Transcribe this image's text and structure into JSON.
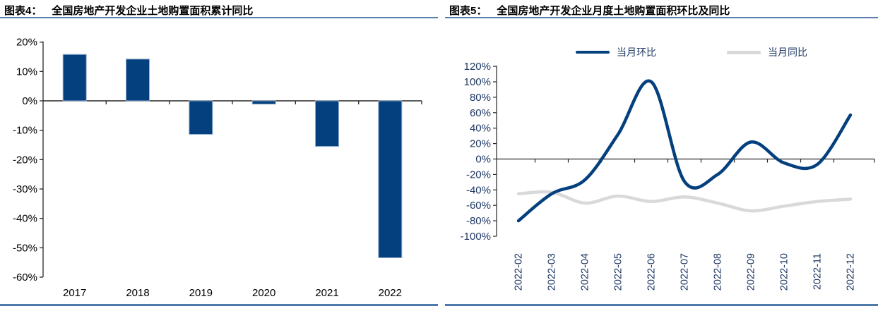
{
  "colors": {
    "navy_series": "#04407E",
    "gray_series": "#D9D9D9",
    "bar_border": "#93AECE",
    "axis_line": "#262626",
    "left_tick_label": "#000000",
    "right_tick_label": "#1F3864",
    "title_underline": "#5b7ca8",
    "bottom_rule": "#4d79ad"
  },
  "charts": {
    "left": {
      "figure_label": "图表4：",
      "title": "全国房地产开发企业土地购置面积累计同比"
    },
    "right": {
      "figure_label": "图表5：",
      "title": "全国房地产开发企业月度土地购置面积环比及同比"
    }
  },
  "chart_data": [
    {
      "id": "land-purchase-area-cumulative-yoy",
      "type": "bar",
      "title": "全国房地产开发企业土地购置面积累计同比",
      "categories": [
        "2017",
        "2018",
        "2019",
        "2020",
        "2021",
        "2022"
      ],
      "values": [
        15.8,
        14.2,
        -11.4,
        -1.1,
        -15.5,
        -53.4
      ],
      "unit": "%",
      "ylim": [
        -60,
        20
      ],
      "ytick_step": 10,
      "grid": false,
      "legend_position": "none"
    },
    {
      "id": "land-purchase-area-monthly-mom-yoy",
      "type": "line",
      "title": "全国房地产开发企业月度土地购置面积环比及同比",
      "categories": [
        "2022-02",
        "2022-03",
        "2022-04",
        "2022-05",
        "2022-06",
        "2022-07",
        "2022-08",
        "2022-09",
        "2022-10",
        "2022-11",
        "2022-12"
      ],
      "series": [
        {
          "name": "当月环比",
          "color": "#04407E",
          "values": [
            -80,
            -45,
            -27,
            32,
            100,
            -29,
            -20,
            22,
            -5,
            -7,
            57
          ]
        },
        {
          "name": "当月同比",
          "color": "#D9D9D9",
          "values": [
            -45,
            -43,
            -57,
            -48,
            -55,
            -49,
            -57,
            -67,
            -61,
            -55,
            -52
          ]
        }
      ],
      "unit": "%",
      "ylim": [
        -100,
        120
      ],
      "ytick_step": 20,
      "grid": false,
      "smooth": true,
      "legend_position": "top"
    }
  ]
}
